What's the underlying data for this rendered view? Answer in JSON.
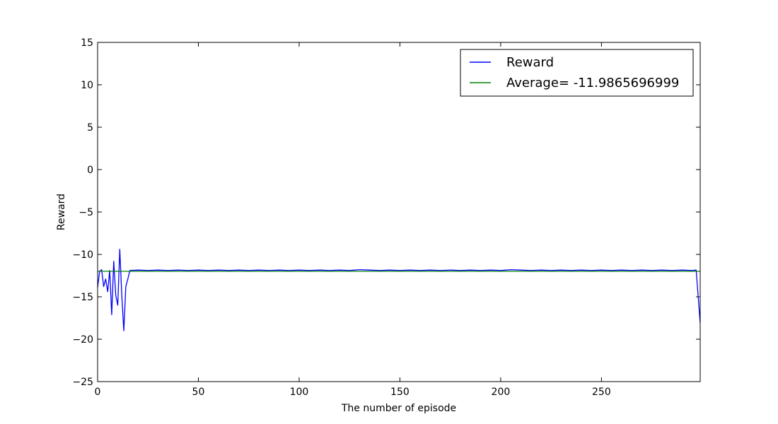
{
  "chart_data": {
    "type": "line",
    "xlabel": "The number of episode",
    "ylabel": "Reward",
    "xlim": [
      0,
      299
    ],
    "ylim": [
      -25,
      15
    ],
    "xticks": [
      0,
      50,
      100,
      150,
      200,
      250
    ],
    "yticks": [
      15,
      10,
      5,
      0,
      -5,
      -10,
      -15,
      -20,
      -25
    ],
    "ytick_labels": [
      "15",
      "10",
      "5",
      "0",
      "−5",
      "−10",
      "−15",
      "−20",
      "−25"
    ],
    "grid": false,
    "legend_position": "top-right",
    "series": [
      {
        "name": "Reward",
        "color": "#0000ff",
        "x": [
          0,
          1,
          2,
          3,
          4,
          5,
          6,
          7,
          8,
          9,
          10,
          11,
          12,
          13,
          14,
          15,
          16,
          20,
          25,
          30,
          35,
          40,
          45,
          50,
          55,
          60,
          65,
          70,
          75,
          80,
          85,
          90,
          95,
          100,
          105,
          110,
          115,
          120,
          125,
          130,
          135,
          140,
          145,
          150,
          155,
          160,
          165,
          170,
          175,
          180,
          185,
          190,
          195,
          200,
          205,
          210,
          215,
          220,
          225,
          230,
          235,
          240,
          245,
          250,
          255,
          260,
          265,
          270,
          275,
          280,
          285,
          290,
          295,
          297,
          298,
          299
        ],
        "y": [
          -13.9,
          -12.0,
          -11.8,
          -13.8,
          -12.9,
          -14.4,
          -11.9,
          -17.1,
          -10.8,
          -14.8,
          -16.0,
          -9.4,
          -14.8,
          -19.0,
          -13.8,
          -12.9,
          -11.9,
          -11.85,
          -11.9,
          -11.85,
          -11.9,
          -11.85,
          -11.9,
          -11.85,
          -11.9,
          -11.85,
          -11.9,
          -11.85,
          -11.9,
          -11.85,
          -11.9,
          -11.85,
          -11.9,
          -11.85,
          -11.9,
          -11.85,
          -11.9,
          -11.85,
          -11.9,
          -11.8,
          -11.85,
          -11.9,
          -11.85,
          -11.9,
          -11.85,
          -11.9,
          -11.85,
          -11.9,
          -11.85,
          -11.9,
          -11.85,
          -11.9,
          -11.85,
          -11.9,
          -11.8,
          -11.85,
          -11.9,
          -11.85,
          -11.9,
          -11.85,
          -11.9,
          -11.85,
          -11.9,
          -11.85,
          -11.9,
          -11.85,
          -11.9,
          -11.85,
          -11.9,
          -11.85,
          -11.9,
          -11.85,
          -11.9,
          -11.85,
          -15.0,
          -18.1
        ]
      },
      {
        "name": "Average= -11.9865696999",
        "color": "#008000",
        "x": [
          0,
          299
        ],
        "y": [
          -11.9865696999,
          -11.9865696999
        ]
      }
    ]
  }
}
